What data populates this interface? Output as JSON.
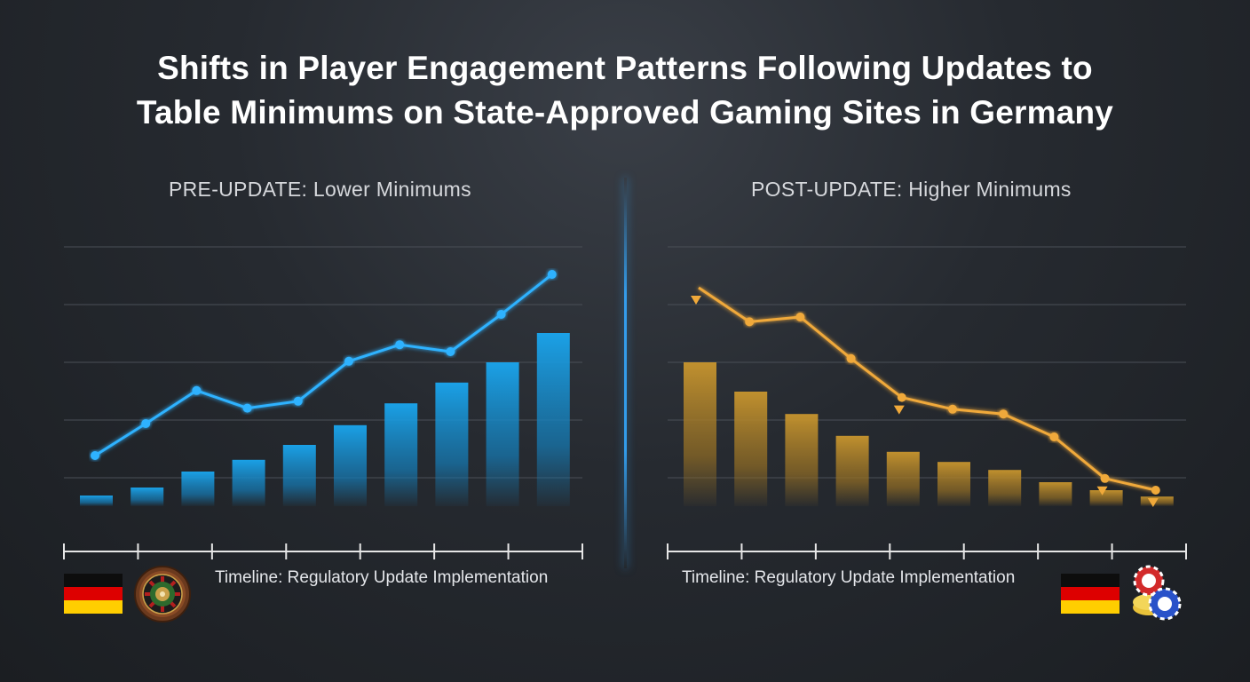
{
  "title_line1": "Shifts in Player Engagement Patterns Following Updates to",
  "title_line2": "Table Minimums on State-Approved Gaming Sites in Germany",
  "colors": {
    "pre_accent": "#2fb2ff",
    "post_accent": "#f0a93a",
    "grid": "#4a4f57"
  },
  "chart_data": [
    {
      "type": "bar",
      "title": "PRE-UPDATE: Lower Minimums",
      "xlabel": "Timeline: Regulatory Update Implementation",
      "ylabel": "",
      "ylim": [
        0,
        5
      ],
      "grid": true,
      "trend_marker": "circle",
      "bars": [
        0.2,
        0.35,
        0.65,
        0.87,
        1.15,
        1.52,
        1.93,
        2.32,
        2.7,
        3.25
      ],
      "line": [
        0.95,
        1.55,
        2.17,
        1.84,
        1.97,
        2.72,
        3.03,
        2.9,
        3.6,
        4.35
      ]
    },
    {
      "type": "bar",
      "title": "POST-UPDATE: Higher Minimums",
      "xlabel": "Timeline: Regulatory Update Implementation",
      "ylabel": "",
      "ylim": [
        0,
        5
      ],
      "grid": true,
      "trend_marker": "circle",
      "bars": [
        2.7,
        2.15,
        1.73,
        1.32,
        1.02,
        0.83,
        0.68,
        0.45,
        0.3,
        0.18
      ],
      "line": [
        4.1,
        3.46,
        3.55,
        2.77,
        2.04,
        1.82,
        1.73,
        1.3,
        0.52,
        0.3
      ],
      "drop_markers": [
        0,
        4,
        8,
        9
      ]
    }
  ],
  "icons": {
    "left_flag": "germany-flag-icon",
    "left_emblem": "roulette-wheel-icon",
    "right_flag": "germany-flag-icon",
    "right_emblem": "casino-chips-icon"
  }
}
